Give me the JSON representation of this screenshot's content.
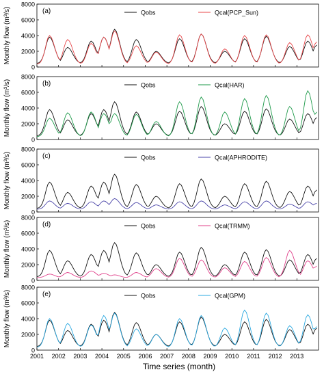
{
  "figure": {
    "xlabel": "Time series (month)",
    "ylabel": "Monthly flow (m³/s)",
    "years": [
      "2001",
      "2002",
      "2003",
      "2004",
      "2005",
      "2006",
      "2007",
      "2008",
      "2009",
      "2010",
      "2011",
      "2012",
      "2013"
    ]
  },
  "chart_data": [
    {
      "type": "line",
      "panel_label": "(a)",
      "ylim": [
        0,
        8000
      ],
      "yticks": [
        0,
        2000,
        4000,
        6000,
        8000
      ],
      "x_unit": "month index from Jan 2001",
      "series": [
        {
          "name": "Qobs",
          "color": "#111111",
          "peaks": [
            3800,
            2500,
            3300,
            3800,
            4800,
            3500,
            2000,
            3600,
            4200,
            2000,
            3600,
            3900,
            2600,
            3300,
            2800
          ]
        },
        {
          "name": "Qcal(PCP_Sun)",
          "color": "#e8474a",
          "peaks": [
            4000,
            3500,
            3000,
            3800,
            4600,
            2700,
            1900,
            4100,
            4200,
            2300,
            4000,
            4100,
            3100,
            4100,
            3200
          ]
        }
      ]
    },
    {
      "type": "line",
      "panel_label": "(b)",
      "ylim": [
        0,
        8000
      ],
      "yticks": [
        0,
        2000,
        4000,
        6000,
        8000
      ],
      "x_unit": "month index from Jan 2001",
      "series": [
        {
          "name": "Qobs",
          "color": "#111111",
          "peaks": [
            3800,
            2500,
            3300,
            3800,
            4800,
            3500,
            2000,
            3600,
            4200,
            2000,
            3600,
            3900,
            2600,
            3300,
            2800
          ]
        },
        {
          "name": "Qcal(HAR)",
          "color": "#1e9a4a",
          "peaks": [
            2700,
            3400,
            3500,
            3300,
            3300,
            3200,
            2300,
            4800,
            5400,
            3500,
            5200,
            5600,
            4200,
            6200,
            3500
          ]
        }
      ]
    },
    {
      "type": "line",
      "panel_label": "(c)",
      "ylim": [
        0,
        8000
      ],
      "yticks": [
        0,
        2000,
        4000,
        6000,
        8000
      ],
      "x_unit": "month index from Jan 2001",
      "series": [
        {
          "name": "Qobs",
          "color": "#111111",
          "peaks": [
            3800,
            2500,
            3300,
            3800,
            4800,
            3500,
            2000,
            3600,
            4200,
            2000,
            3600,
            3900,
            2600,
            3300,
            2800
          ]
        },
        {
          "name": "Qcal(APHRODITE)",
          "color": "#4a45a8",
          "peaks": [
            1400,
            1100,
            1300,
            1400,
            1700,
            1200,
            900,
            1300,
            1400,
            900,
            1300,
            1400,
            1000,
            1300,
            1100
          ]
        }
      ]
    },
    {
      "type": "line",
      "panel_label": "(d)",
      "ylim": [
        0,
        8000
      ],
      "yticks": [
        0,
        2000,
        4000,
        6000,
        8000
      ],
      "x_unit": "month index from Jan 2001",
      "series": [
        {
          "name": "Qobs",
          "color": "#111111",
          "peaks": [
            3800,
            2500,
            3300,
            3800,
            4800,
            3500,
            2000,
            3600,
            4200,
            2000,
            3600,
            3900,
            2600,
            3300,
            2800
          ]
        },
        {
          "name": "Qcal(TRMM)",
          "color": "#e0408a",
          "peaks": [
            800,
            1000,
            1200,
            900,
            700,
            1000,
            1500,
            2800,
            2600,
            1600,
            2400,
            2900,
            3800,
            2500,
            1800
          ]
        }
      ]
    },
    {
      "type": "line",
      "panel_label": "(e)",
      "ylim": [
        0,
        8000
      ],
      "yticks": [
        0,
        2000,
        4000,
        6000,
        8000
      ],
      "x_unit": "month index from Jan 2001",
      "series": [
        {
          "name": "Qobs",
          "color": "#111111",
          "peaks": [
            3800,
            2500,
            3300,
            3800,
            4800,
            3500,
            2000,
            3600,
            4200,
            2000,
            3600,
            3900,
            2600,
            3300,
            2800
          ]
        },
        {
          "name": "Qcal(GPM)",
          "color": "#2aa8e0",
          "peaks": [
            4000,
            3400,
            3200,
            4400,
            4700,
            2700,
            2000,
            4000,
            4400,
            2800,
            5100,
            4700,
            3100,
            4500,
            3000
          ]
        }
      ]
    }
  ]
}
